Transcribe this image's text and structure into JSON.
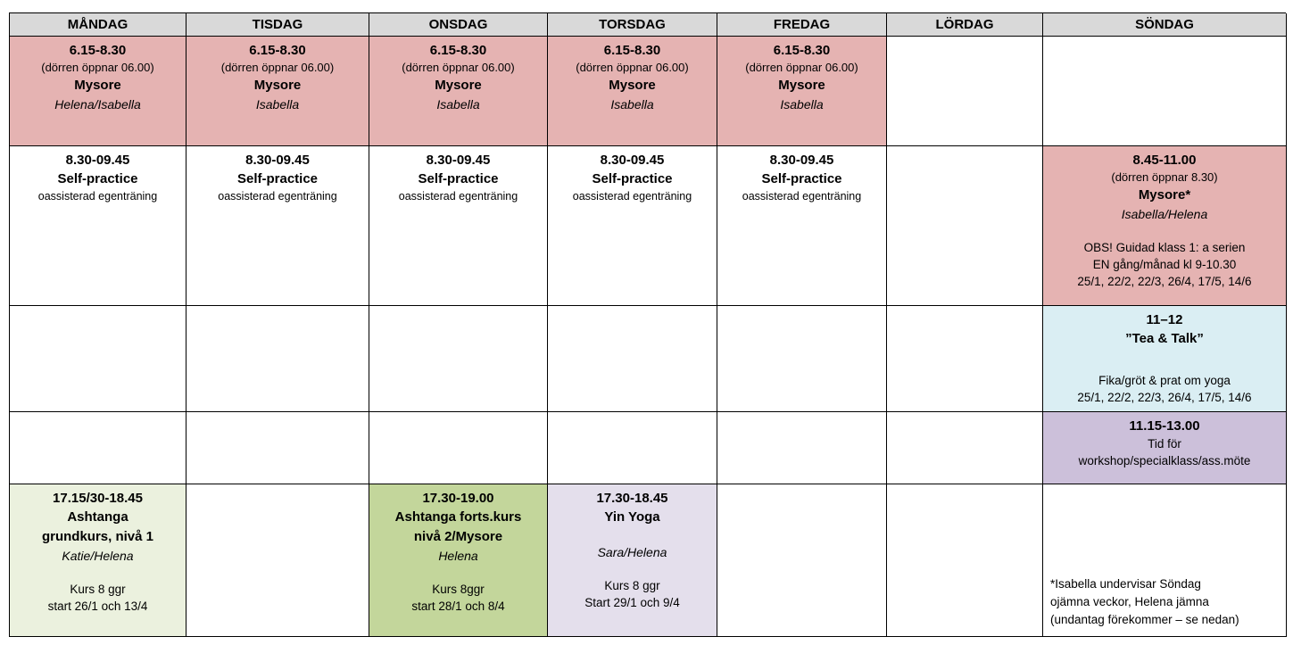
{
  "days": {
    "monday": "MÅNDAG",
    "tuesday": "TISDAG",
    "wednesday": "ONSDAG",
    "thursday": "TORSDAG",
    "friday": "FREDAG",
    "saturday": "LÖRDAG",
    "sunday": "SÖNDAG"
  },
  "colors": {
    "header_bg": "#d9d9d9",
    "pink": "#e5b3b2",
    "blue": "#daeef3",
    "purple": "#ccc0da",
    "pale_green": "#ebf1de",
    "green": "#c3d69b",
    "lavender": "#e4dfec",
    "border": "#000000"
  },
  "morning_mysore": {
    "time": "6.15-8.30",
    "door_note": "(dörren öppnar 06.00)",
    "title": "Mysore",
    "teachers": {
      "monday": "Helena/Isabella",
      "tuesday": "Isabella",
      "wednesday": "Isabella",
      "thursday": "Isabella",
      "friday": "Isabella"
    }
  },
  "self_practice": {
    "time": "8.30-09.45",
    "title": "Self-practice",
    "subtitle": "oassisterad egenträning"
  },
  "sunday_mysore": {
    "time": "8.45-11.00",
    "door_note": "(dörren öppnar 8.30)",
    "title": "Mysore*",
    "teacher": "Isabella/Helena",
    "obs_line1": "OBS! Guidad klass 1: a serien",
    "obs_line2": "EN gång/månad kl 9-10.30",
    "dates": "25/1, 22/2, 22/3, 26/4, 17/5, 14/6"
  },
  "tea_and_talk": {
    "time": "11–12",
    "title": "”Tea & Talk”",
    "note": "Fika/gröt & prat om yoga",
    "dates": "25/1, 22/2, 22/3, 26/4, 17/5, 14/6"
  },
  "workshop_slot": {
    "time": "11.15-13.00",
    "line1": "Tid för",
    "line2": "workshop/specialklass/ass.möte"
  },
  "monday_evening": {
    "time": "17.15/30-18.45",
    "title_line1": "Ashtanga",
    "title_line2": "grundkurs, nivå 1",
    "teacher": "Katie/Helena",
    "course": "Kurs 8 ggr",
    "start": "start 26/1 och 13/4"
  },
  "wednesday_evening": {
    "time": "17.30-19.00",
    "title_line1": "Ashtanga forts.kurs",
    "title_line2": "nivå 2/Mysore",
    "teacher": "Helena",
    "course": "Kurs 8ggr",
    "start": "start 28/1 och 8/4"
  },
  "thursday_evening": {
    "time": "17.30-18.45",
    "title": "Yin Yoga",
    "teacher": "Sara/Helena",
    "course": "Kurs 8 ggr",
    "start": "Start 29/1 och 9/4"
  },
  "sunday_footnote": {
    "line1": "*Isabella undervisar Söndag",
    "line2": "ojämna veckor, Helena jämna",
    "line3": "(undantag förekommer – se nedan)"
  }
}
